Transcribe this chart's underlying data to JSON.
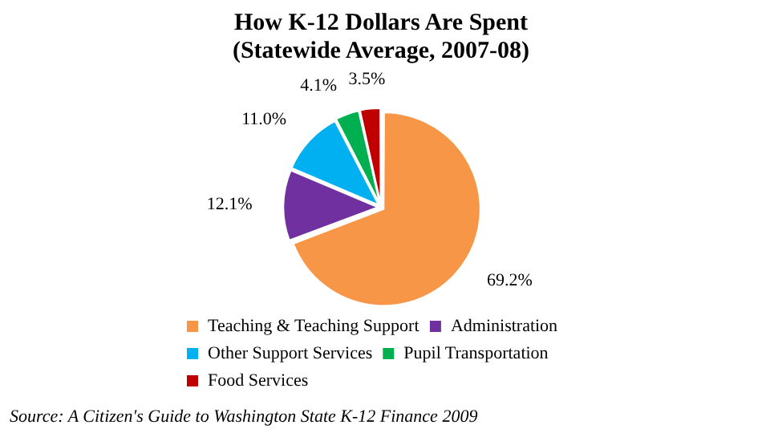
{
  "chart_data": {
    "type": "pie",
    "title": "How K-12 Dollars Are Spent\n(Statewide Average, 2007-08)",
    "categories": [
      "Teaching & Teaching Support",
      "Administration",
      "Other Support Services",
      "Pupil Transportation",
      "Food Services"
    ],
    "values": [
      69.2,
      12.1,
      11.0,
      4.1,
      3.5
    ],
    "value_labels": [
      "69.2%",
      "12.1%",
      "11.0%",
      "4.1%",
      "3.5%"
    ],
    "colors": [
      "#f79646",
      "#7030a0",
      "#00b0f0",
      "#00b050",
      "#c00000"
    ],
    "legend": "bottom",
    "annotations": [
      "Source: A Citizen's Guide to Washington State K-12 Finance 2009"
    ]
  }
}
